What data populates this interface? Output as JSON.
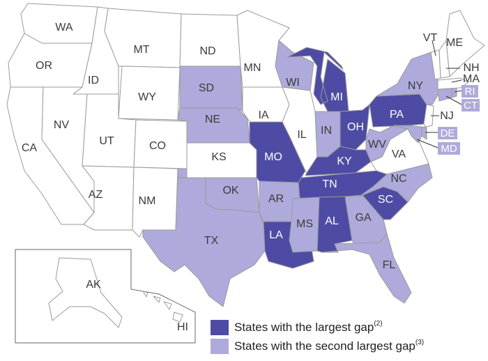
{
  "colors": {
    "largest_gap": "#4e4ba4",
    "second_largest_gap": "#aeaadb",
    "no_category": "#ffffff",
    "border": "#9a9a9a"
  },
  "legend": {
    "largest": {
      "label": "States with the largest gap",
      "note": "(2)"
    },
    "second": {
      "label": "States with the second largest gap",
      "note": "(3)"
    }
  },
  "states": {
    "WA": {
      "label": "WA",
      "category": "none"
    },
    "OR": {
      "label": "OR",
      "category": "none"
    },
    "CA": {
      "label": "CA",
      "category": "none"
    },
    "ID": {
      "label": "ID",
      "category": "none"
    },
    "NV": {
      "label": "NV",
      "category": "none"
    },
    "MT": {
      "label": "MT",
      "category": "none"
    },
    "WY": {
      "label": "WY",
      "category": "none"
    },
    "UT": {
      "label": "UT",
      "category": "none"
    },
    "AZ": {
      "label": "AZ",
      "category": "none"
    },
    "CO": {
      "label": "CO",
      "category": "none"
    },
    "NM": {
      "label": "NM",
      "category": "none"
    },
    "ND": {
      "label": "ND",
      "category": "none"
    },
    "SD": {
      "label": "SD",
      "category": "second"
    },
    "NE": {
      "label": "NE",
      "category": "second"
    },
    "KS": {
      "label": "KS",
      "category": "none"
    },
    "OK": {
      "label": "OK",
      "category": "second"
    },
    "TX": {
      "label": "TX",
      "category": "second"
    },
    "MN": {
      "label": "MN",
      "category": "none"
    },
    "IA": {
      "label": "IA",
      "category": "none"
    },
    "MO": {
      "label": "MO",
      "category": "largest"
    },
    "AR": {
      "label": "AR",
      "category": "second"
    },
    "LA": {
      "label": "LA",
      "category": "largest"
    },
    "WI": {
      "label": "WI",
      "category": "second"
    },
    "IL": {
      "label": "IL",
      "category": "none"
    },
    "MI": {
      "label": "MI",
      "category": "largest"
    },
    "IN": {
      "label": "IN",
      "category": "second"
    },
    "OH": {
      "label": "OH",
      "category": "largest"
    },
    "KY": {
      "label": "KY",
      "category": "largest"
    },
    "TN": {
      "label": "TN",
      "category": "largest"
    },
    "MS": {
      "label": "MS",
      "category": "second"
    },
    "AL": {
      "label": "AL",
      "category": "largest"
    },
    "GA": {
      "label": "GA",
      "category": "second"
    },
    "FL": {
      "label": "FL",
      "category": "second"
    },
    "SC": {
      "label": "SC",
      "category": "largest"
    },
    "NC": {
      "label": "NC",
      "category": "second"
    },
    "VA": {
      "label": "VA",
      "category": "none"
    },
    "WV": {
      "label": "WV",
      "category": "second"
    },
    "PA": {
      "label": "PA",
      "category": "largest"
    },
    "NY": {
      "label": "NY",
      "category": "second"
    },
    "VT": {
      "label": "VT",
      "category": "none"
    },
    "NH": {
      "label": "NH",
      "category": "none"
    },
    "ME": {
      "label": "ME",
      "category": "none"
    },
    "MA": {
      "label": "MA",
      "category": "none"
    },
    "RI": {
      "label": "RI",
      "category": "second"
    },
    "CT": {
      "label": "CT",
      "category": "second"
    },
    "NJ": {
      "label": "NJ",
      "category": "none"
    },
    "DE": {
      "label": "DE",
      "category": "second"
    },
    "MD": {
      "label": "MD",
      "category": "second"
    },
    "AK": {
      "label": "AK",
      "category": "none"
    },
    "HI": {
      "label": "HI",
      "category": "none"
    }
  }
}
